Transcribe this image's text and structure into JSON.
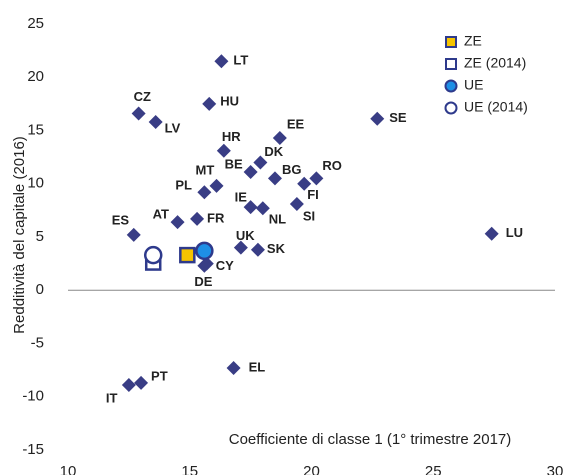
{
  "chart_data": {
    "type": "scatter",
    "xlabel": "Coefficiente di classe 1 (1° trimestre 2017)",
    "ylabel": "Redditività del capitale (2016)",
    "xlim": [
      10,
      30
    ],
    "ylim": [
      -15,
      25
    ],
    "xticks": [
      10,
      15,
      20,
      25,
      30
    ],
    "yticks": [
      -15,
      -10,
      -5,
      0,
      5,
      10,
      15,
      20,
      25
    ],
    "points": {
      "color": "#393d85",
      "labels": [
        "LT",
        "CZ",
        "LV",
        "HU",
        "SE",
        "EE",
        "HR",
        "DK",
        "BE",
        "MT",
        "PL",
        "BG",
        "RO",
        "FI",
        "IE",
        "NL",
        "SI",
        "AT",
        "FR",
        "ES",
        "LU",
        "UK",
        "SK",
        "CY",
        "DE",
        "EL",
        "PT",
        "IT"
      ],
      "x": [
        16.3,
        12.9,
        13.6,
        15.8,
        22.7,
        18.7,
        16.4,
        17.9,
        17.5,
        16.1,
        15.6,
        18.5,
        20.2,
        19.7,
        17.5,
        18.0,
        19.4,
        14.5,
        15.3,
        12.7,
        27.4,
        17.1,
        17.8,
        15.7,
        15.6,
        16.8,
        13.0,
        12.5
      ],
      "y": [
        21.5,
        16.6,
        15.8,
        17.5,
        16.1,
        14.3,
        13.1,
        12.0,
        11.1,
        9.8,
        9.2,
        10.5,
        10.5,
        10.0,
        7.8,
        7.7,
        8.1,
        6.4,
        6.7,
        5.2,
        5.3,
        4.0,
        3.8,
        2.5,
        2.3,
        -7.3,
        -8.7,
        -8.9
      ]
    },
    "series": [
      {
        "name": "ZE",
        "marker": "square",
        "color": "#f5c400",
        "x": [
          14.9
        ],
        "y": [
          3.3
        ]
      },
      {
        "name": "ZE (2014)",
        "marker": "square",
        "color": "#ffffff",
        "x": [
          13.5
        ],
        "y": [
          2.6
        ]
      },
      {
        "name": "UE",
        "marker": "circle",
        "color": "#1e8fe6",
        "x": [
          15.6
        ],
        "y": [
          3.7
        ]
      },
      {
        "name": "UE (2014)",
        "marker": "circle",
        "color": "#ffffff",
        "x": [
          13.5
        ],
        "y": [
          3.3
        ]
      }
    ]
  }
}
